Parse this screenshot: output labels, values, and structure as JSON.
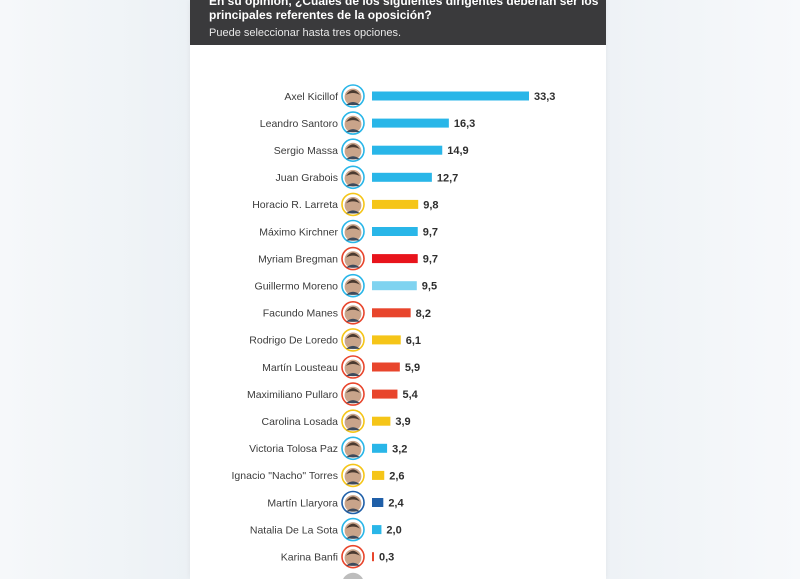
{
  "header": {
    "question": "En su opinión, ¿Cuáles de los siguientes dirigentes deberían ser los principales referentes de la oposición?",
    "subtitle": "Puede seleccionar hasta tres opciones."
  },
  "chart_data": {
    "type": "bar",
    "orientation": "horizontal",
    "categories": [
      "Axel Kicillof",
      "Leandro Santoro",
      "Sergio Massa",
      "Juan Grabois",
      "Horacio R. Larreta",
      "Máximo Kirchner",
      "Myriam Bregman",
      "Guillermo Moreno",
      "Facundo Manes",
      "Rodrigo De Loredo",
      "Martín Lousteau",
      "Maximiliano Pullaro",
      "Carolina Losada",
      "Victoria Tolosa Paz",
      "Ignacio \"Nacho\" Torres",
      "Martín Llaryora",
      "Natalia De La Sota",
      "Karina Banfi"
    ],
    "values": [
      33.3,
      16.3,
      14.9,
      12.7,
      9.8,
      9.7,
      9.7,
      9.5,
      8.2,
      6.1,
      5.9,
      5.4,
      3.9,
      3.2,
      2.6,
      2.4,
      2.0,
      0.3
    ],
    "value_labels": [
      "33,3",
      "16,3",
      "14,9",
      "12,7",
      "9,8",
      "9,7",
      "9,7",
      "9,5",
      "8,2",
      "6,1",
      "5,9",
      "5,4",
      "3,9",
      "3,2",
      "2,6",
      "2,4",
      "2,0",
      "0,3"
    ],
    "colors": [
      "#29b6e8",
      "#29b6e8",
      "#29b6e8",
      "#29b6e8",
      "#f5c518",
      "#29b6e8",
      "#e8141c",
      "#7fd3f0",
      "#e8452c",
      "#f5c518",
      "#e8452c",
      "#e8452c",
      "#f5c518",
      "#29b6e8",
      "#f5c518",
      "#1f5fa8",
      "#29b6e8",
      "#e8452c"
    ],
    "avatar_ring_colors": [
      "#29b6e8",
      "#29b6e8",
      "#29b6e8",
      "#29b6e8",
      "#f5c518",
      "#29b6e8",
      "#e8452c",
      "#29b6e8",
      "#e8452c",
      "#f5c518",
      "#e8452c",
      "#e8452c",
      "#f5c518",
      "#29b6e8",
      "#f5c518",
      "#1f5fa8",
      "#29b6e8",
      "#e8452c"
    ],
    "xlim": [
      0,
      33.3
    ],
    "grid": false,
    "legend": "none"
  }
}
